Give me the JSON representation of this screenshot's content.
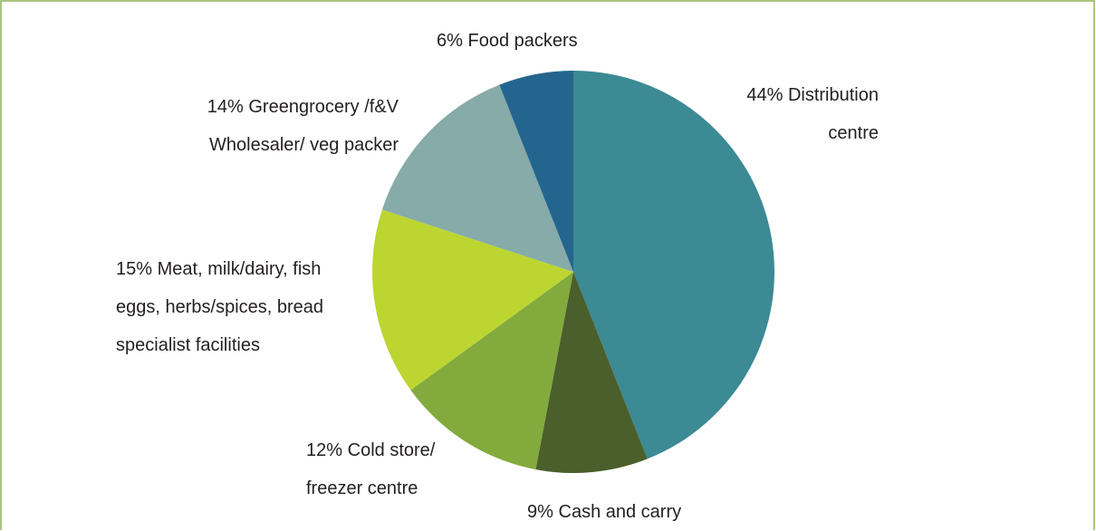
{
  "chart_data": {
    "type": "pie",
    "categories": [
      "Distribution\ncentre",
      "Cash and carry",
      "Cold store/\nfreezer centre",
      "Meat, milk/dairy, fish\neggs, herbs/spices, bread\nspecialist facilities",
      "Greengrocery /f&V\nWholesaler/ veg packer",
      "Food packers"
    ],
    "values": [
      44,
      9,
      12,
      15,
      14,
      6
    ],
    "value_labels": [
      "44%",
      "9%",
      "12%",
      "15%",
      "14%",
      "6%"
    ],
    "colors": [
      "#3b8a94",
      "#4a5f2b",
      "#83aa3d",
      "#bdd531",
      "#86aba8",
      "#24658f"
    ]
  }
}
